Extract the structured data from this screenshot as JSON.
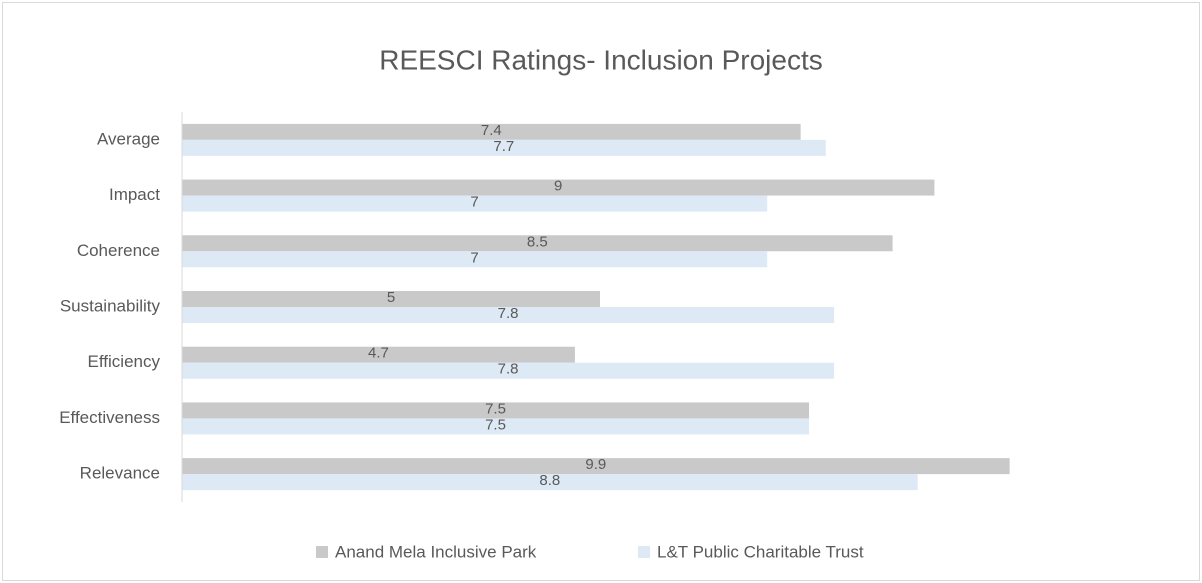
{
  "chart_data": {
    "type": "barh",
    "title": "REESCI Ratings- Inclusion Projects",
    "categories": [
      "Average",
      "Impact",
      "Coherence",
      "Sustainability",
      "Efficiency",
      "Effectiveness",
      "Relevance"
    ],
    "series": [
      {
        "name": "Anand Mela Inclusive Park",
        "color": "#c9c9c9",
        "values": [
          7.4,
          9,
          8.5,
          5,
          4.7,
          7.5,
          9.9
        ]
      },
      {
        "name": "L&T Public Charitable Trust",
        "color": "#dde9f5",
        "values": [
          7.7,
          7,
          7,
          7.8,
          7.8,
          7.5,
          8.8
        ]
      }
    ],
    "xlim": [
      0,
      10
    ],
    "legend": "bottom"
  }
}
